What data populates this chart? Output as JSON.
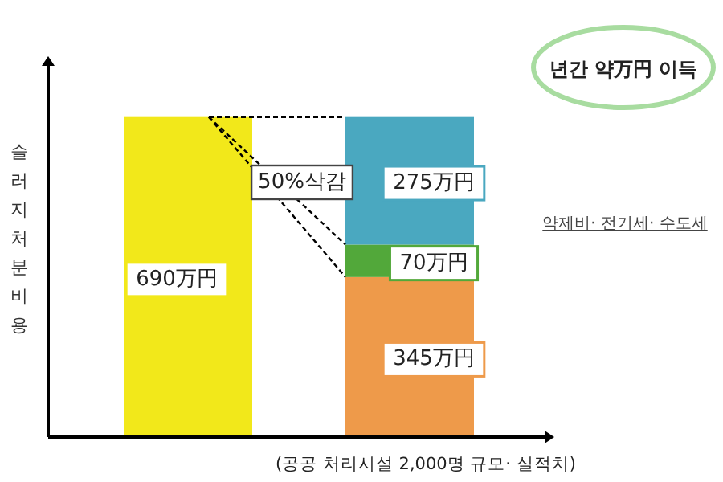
{
  "chart_data": {
    "type": "bar",
    "stacked": true,
    "categories": [
      null,
      null
    ],
    "ylabel": "슬러지처분비용",
    "series": [
      {
        "colors": [
          "#f2e81a",
          "#ee9a4a"
        ],
        "values": [
          690,
          345
        ],
        "value_labels": [
          "690万円",
          "345万円"
        ]
      },
      {
        "color": "#52a83a",
        "values": [
          null,
          70
        ],
        "value_labels": [
          null,
          "70万円"
        ]
      },
      {
        "color": "#4aa8c0",
        "values": [
          null,
          275
        ],
        "value_labels": [
          null,
          "275万円"
        ]
      }
    ],
    "annotations": [
      "년간 약万円 이득",
      "50%삭감",
      "약제비· 전기세· 수도세",
      "(공공 처리시설 2,000명 규모· 실적치)"
    ]
  }
}
